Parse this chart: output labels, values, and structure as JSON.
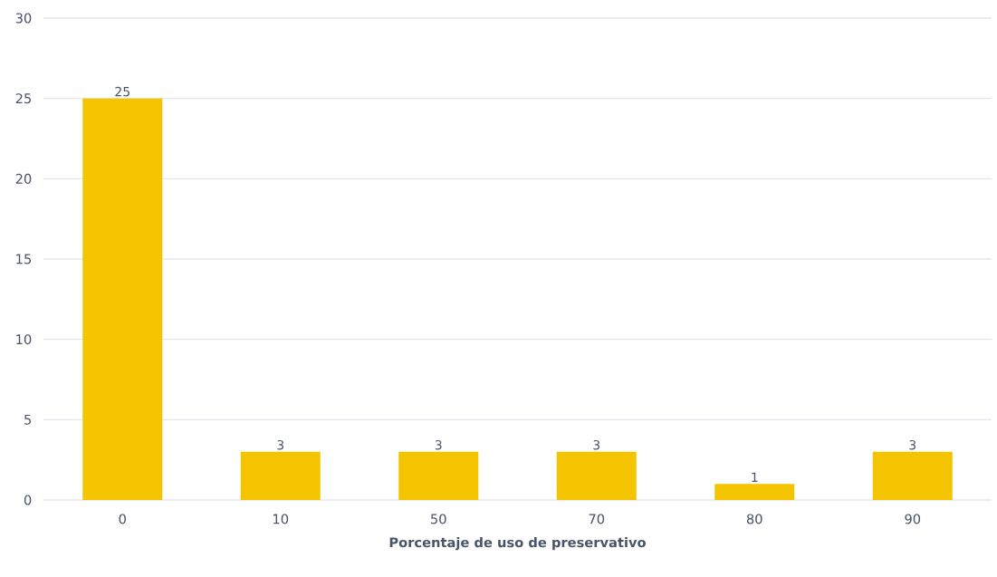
{
  "chart_data": {
    "type": "bar",
    "xlabel": "Porcentaje de uso de preservativo",
    "categories": [
      "0",
      "10",
      "50",
      "70",
      "80",
      "90"
    ],
    "values": [
      25,
      3,
      3,
      3,
      1,
      3
    ],
    "color": "#f5c400",
    "ylim": [
      0,
      30
    ],
    "yticks": [
      0,
      5,
      10,
      15,
      20,
      25,
      30
    ],
    "grid": "y",
    "data_labels": true
  }
}
